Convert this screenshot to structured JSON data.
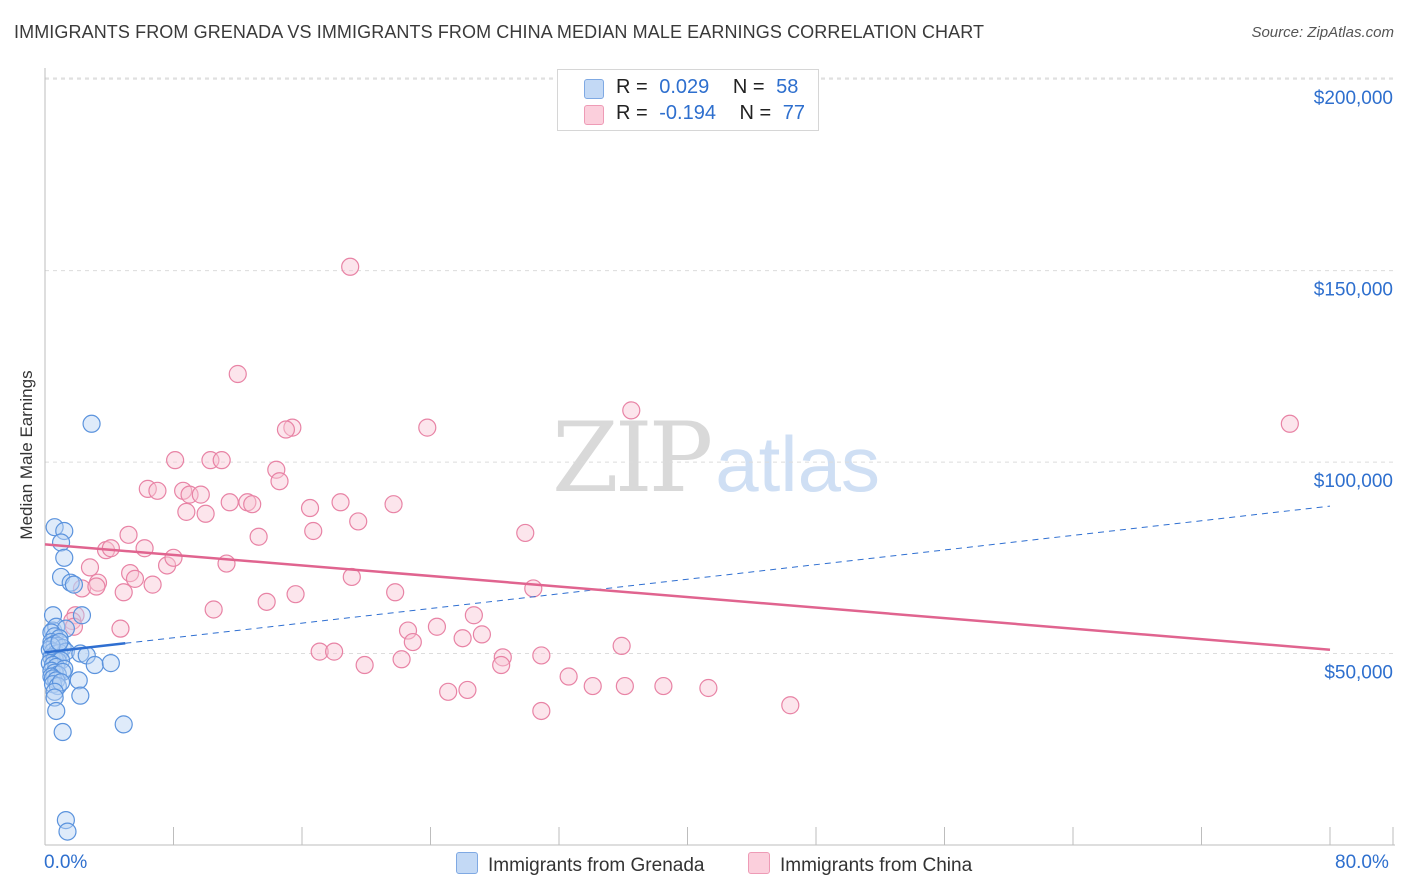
{
  "header": {
    "title": "IMMIGRANTS FROM GRENADA VS IMMIGRANTS FROM CHINA MEDIAN MALE EARNINGS CORRELATION CHART",
    "source": "Source: ZipAtlas.com"
  },
  "watermark": {
    "zip": "ZIP",
    "atlas": "atlas"
  },
  "legend": {
    "rows": [
      {
        "r_label": "R =",
        "r_value": "0.029",
        "n_label": "N =",
        "n_value": "58",
        "color": "#a8c8f0"
      },
      {
        "r_label": "R =",
        "r_value": "-0.194",
        "n_label": "N =",
        "n_value": "77",
        "color": "#f5b8cb"
      }
    ]
  },
  "bottom_legend": {
    "grenada": "Immigrants from Grenada",
    "china": "Immigrants from China"
  },
  "colors": {
    "grenada_fill": "#b8d3f3",
    "grenada_stroke": "#5b93dd",
    "grenada_line": "#2f6fd1",
    "china_fill": "#f8c6d5",
    "china_stroke": "#e883a5",
    "china_line": "#e0648f",
    "axis_label": "#2e6fce",
    "grid": "#dcdcdc"
  },
  "chart_data": {
    "type": "scatter",
    "title": "IMMIGRANTS FROM GRENADA VS IMMIGRANTS FROM CHINA MEDIAN MALE EARNINGS CORRELATION CHART",
    "xlabel": "",
    "ylabel": "Median Male Earnings",
    "xlim": [
      0,
      80
    ],
    "ylim": [
      0,
      205000
    ],
    "x_tick_labels": [
      "0.0%",
      "80.0%"
    ],
    "y_ticks": [
      50000,
      100000,
      150000,
      200000
    ],
    "y_tick_labels": [
      "$50,000",
      "$100,000",
      "$150,000",
      "$200,000"
    ],
    "series": [
      {
        "name": "Immigrants from Grenada",
        "R": 0.029,
        "N": 58,
        "trend": {
          "x0": 0,
          "y0": 50300,
          "x1": 80,
          "y1": 88500,
          "solid_until": 5
        },
        "points": [
          [
            0.6,
            83000
          ],
          [
            1.2,
            82000
          ],
          [
            2.9,
            110000
          ],
          [
            1.0,
            79000
          ],
          [
            1.2,
            75000
          ],
          [
            1.0,
            70000
          ],
          [
            1.6,
            68500
          ],
          [
            1.8,
            68000
          ],
          [
            0.5,
            60000
          ],
          [
            2.3,
            60000
          ],
          [
            0.5,
            56000
          ],
          [
            0.7,
            57000
          ],
          [
            1.3,
            56500
          ],
          [
            0.4,
            55500
          ],
          [
            0.6,
            54500
          ],
          [
            0.9,
            54000
          ],
          [
            0.4,
            53000
          ],
          [
            0.6,
            52500
          ],
          [
            0.8,
            52000
          ],
          [
            1.1,
            51500
          ],
          [
            0.3,
            51000
          ],
          [
            0.5,
            50500
          ],
          [
            0.7,
            50000
          ],
          [
            0.9,
            50200
          ],
          [
            1.3,
            50500
          ],
          [
            2.2,
            50000
          ],
          [
            2.6,
            49500
          ],
          [
            0.4,
            49000
          ],
          [
            0.6,
            48500
          ],
          [
            0.8,
            48000
          ],
          [
            1.0,
            48200
          ],
          [
            0.3,
            47500
          ],
          [
            0.5,
            47000
          ],
          [
            0.7,
            46500
          ],
          [
            1.2,
            46000
          ],
          [
            3.1,
            47000
          ],
          [
            4.1,
            47500
          ],
          [
            0.4,
            45500
          ],
          [
            0.6,
            45000
          ],
          [
            0.8,
            44500
          ],
          [
            1.1,
            45200
          ],
          [
            0.4,
            44000
          ],
          [
            0.5,
            43500
          ],
          [
            0.7,
            43000
          ],
          [
            2.1,
            43000
          ],
          [
            0.5,
            42000
          ],
          [
            0.8,
            41500
          ],
          [
            1.0,
            42500
          ],
          [
            0.6,
            40000
          ],
          [
            2.2,
            39000
          ],
          [
            0.6,
            38500
          ],
          [
            0.7,
            35000
          ],
          [
            4.9,
            31500
          ],
          [
            1.1,
            29500
          ],
          [
            1.3,
            6500
          ],
          [
            1.4,
            3500
          ],
          [
            0.4,
            52000
          ],
          [
            0.9,
            53000
          ]
        ]
      },
      {
        "name": "Immigrants from China",
        "R": -0.194,
        "N": 77,
        "trend": {
          "x0": 0,
          "y0": 78500,
          "x1": 80,
          "y1": 51000
        },
        "points": [
          [
            19.0,
            151000
          ],
          [
            12.0,
            123000
          ],
          [
            36.5,
            113500
          ],
          [
            77.5,
            110000
          ],
          [
            15.4,
            109000
          ],
          [
            15.0,
            108500
          ],
          [
            23.8,
            109000
          ],
          [
            8.1,
            100500
          ],
          [
            10.3,
            100500
          ],
          [
            11.0,
            100500
          ],
          [
            14.4,
            98000
          ],
          [
            14.6,
            95000
          ],
          [
            6.4,
            93000
          ],
          [
            7.0,
            92500
          ],
          [
            8.6,
            92500
          ],
          [
            9.0,
            91500
          ],
          [
            9.7,
            91500
          ],
          [
            11.5,
            89500
          ],
          [
            12.6,
            89500
          ],
          [
            12.9,
            89000
          ],
          [
            18.4,
            89500
          ],
          [
            21.7,
            89000
          ],
          [
            8.8,
            87000
          ],
          [
            10.0,
            86500
          ],
          [
            16.5,
            88000
          ],
          [
            19.5,
            84500
          ],
          [
            13.3,
            80500
          ],
          [
            16.7,
            82000
          ],
          [
            29.9,
            81500
          ],
          [
            5.2,
            81000
          ],
          [
            3.8,
            77000
          ],
          [
            4.1,
            77500
          ],
          [
            6.2,
            77500
          ],
          [
            11.3,
            73500
          ],
          [
            7.6,
            73000
          ],
          [
            2.8,
            72500
          ],
          [
            5.3,
            71000
          ],
          [
            19.1,
            70000
          ],
          [
            5.6,
            69500
          ],
          [
            3.3,
            68500
          ],
          [
            6.7,
            68000
          ],
          [
            2.3,
            67000
          ],
          [
            3.2,
            67500
          ],
          [
            30.4,
            67000
          ],
          [
            4.9,
            66000
          ],
          [
            13.8,
            63500
          ],
          [
            21.8,
            66000
          ],
          [
            15.6,
            65500
          ],
          [
            10.5,
            61500
          ],
          [
            1.9,
            60000
          ],
          [
            26.7,
            60000
          ],
          [
            1.7,
            58500
          ],
          [
            4.7,
            56500
          ],
          [
            1.8,
            57000
          ],
          [
            22.6,
            56000
          ],
          [
            24.4,
            57000
          ],
          [
            27.2,
            55000
          ],
          [
            26.0,
            54000
          ],
          [
            22.9,
            53000
          ],
          [
            35.9,
            52000
          ],
          [
            17.1,
            50500
          ],
          [
            18.0,
            50500
          ],
          [
            28.5,
            49000
          ],
          [
            22.2,
            48500
          ],
          [
            30.9,
            49500
          ],
          [
            19.9,
            47000
          ],
          [
            28.4,
            47000
          ],
          [
            32.6,
            44000
          ],
          [
            36.1,
            41500
          ],
          [
            38.5,
            41500
          ],
          [
            26.3,
            40500
          ],
          [
            34.1,
            41500
          ],
          [
            41.3,
            41000
          ],
          [
            25.1,
            40000
          ],
          [
            46.4,
            36500
          ],
          [
            30.9,
            35000
          ],
          [
            8.0,
            75000
          ]
        ]
      }
    ]
  }
}
